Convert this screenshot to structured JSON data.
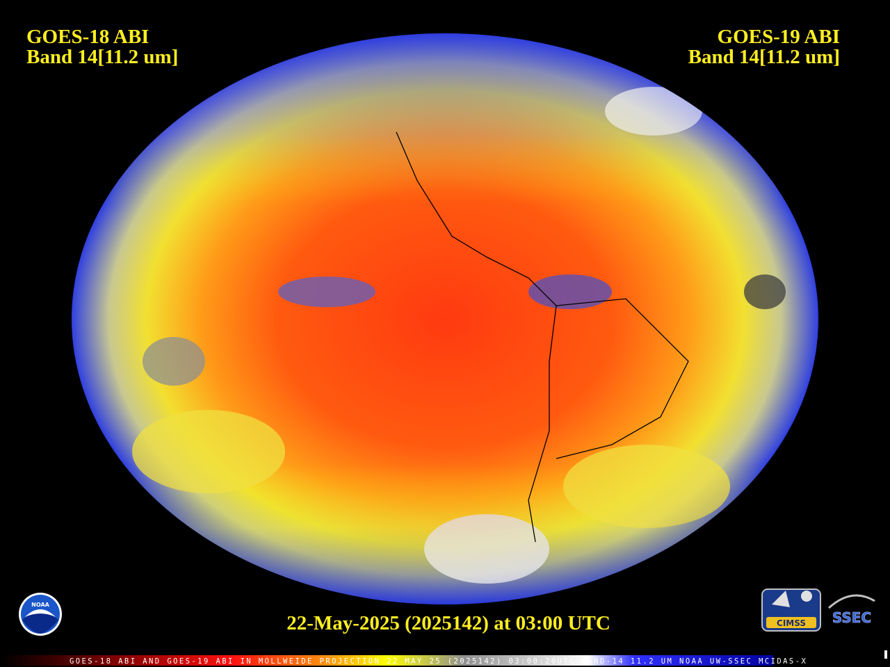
{
  "header_left": {
    "line1": "GOES-18 ABI",
    "line2": "Band 14[11.2 um]"
  },
  "header_right": {
    "line1": "GOES-19 ABI",
    "line2": "Band 14[11.2 um]"
  },
  "timestamp": "22-May-2025 (2025142) at 03:00 UTC",
  "caption": "GOES-18 ABI AND GOES-19 ABI IN MOLLWEIDE PROJECTION 22 MAY 25 (2025142) 03:00:20UTC BAND-14 11.2 UM NOAA UW-SSEC MCIDAS-X",
  "logos": {
    "noaa": "NOAA",
    "cimss": "CIMSS",
    "ssec": "SSEC"
  }
}
